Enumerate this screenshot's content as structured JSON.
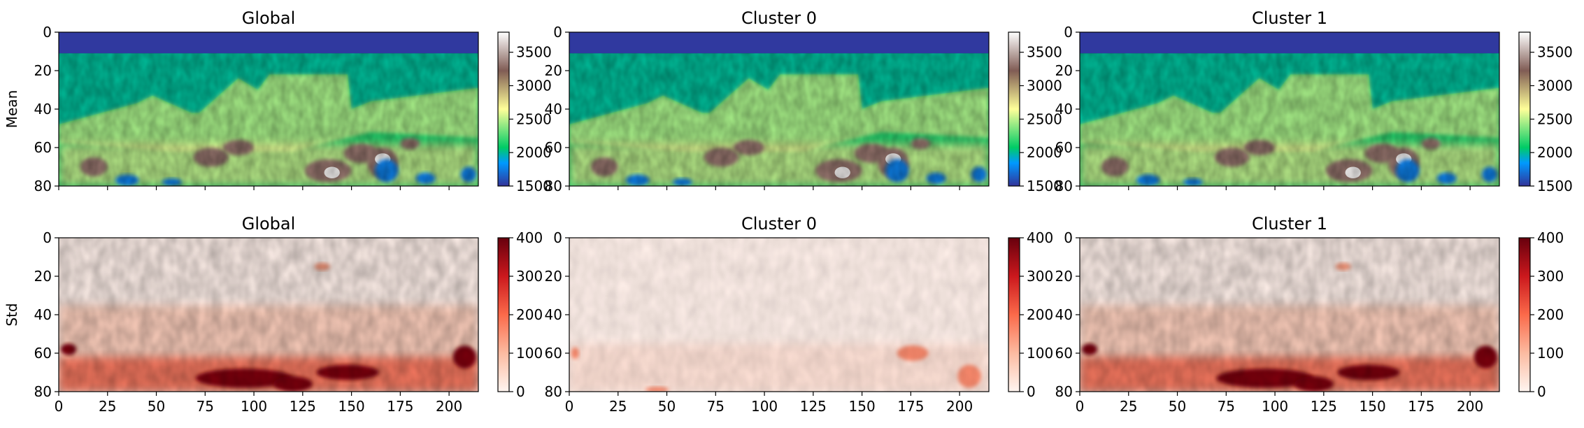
{
  "figure": {
    "row_labels": [
      "Mean",
      "Std"
    ]
  },
  "chart_data": [
    {
      "type": "heatmap",
      "title": "Global",
      "ylabel": "Mean",
      "xlim": [
        0,
        215
      ],
      "ylim": [
        80,
        0
      ],
      "x_ticks": [
        0,
        25,
        50,
        75,
        100,
        125,
        150,
        175,
        200
      ],
      "x_tick_labels_shown": false,
      "y_ticks": [
        0,
        20,
        40,
        60,
        80
      ],
      "colormap": "terrain",
      "colorbar": {
        "min": 1500,
        "max": 3800,
        "ticks": [
          1500,
          2000,
          2500,
          3000,
          3500
        ]
      }
    },
    {
      "type": "heatmap",
      "title": "Cluster 0",
      "xlim": [
        0,
        215
      ],
      "ylim": [
        80,
        0
      ],
      "x_ticks": [
        0,
        25,
        50,
        75,
        100,
        125,
        150,
        175,
        200
      ],
      "x_tick_labels_shown": false,
      "y_ticks": [
        0,
        20,
        40,
        60,
        80
      ],
      "colormap": "terrain",
      "colorbar": {
        "min": 1500,
        "max": 3800,
        "ticks": [
          1500,
          2000,
          2500,
          3000,
          3500
        ]
      }
    },
    {
      "type": "heatmap",
      "title": "Cluster 1",
      "xlim": [
        0,
        215
      ],
      "ylim": [
        80,
        0
      ],
      "x_ticks": [
        0,
        25,
        50,
        75,
        100,
        125,
        150,
        175,
        200
      ],
      "x_tick_labels_shown": false,
      "y_ticks": [
        0,
        20,
        40,
        60,
        80
      ],
      "colormap": "terrain",
      "colorbar": {
        "min": 1500,
        "max": 3800,
        "ticks": [
          1500,
          2000,
          2500,
          3000,
          3500
        ]
      }
    },
    {
      "type": "heatmap",
      "title": "Global",
      "ylabel": "Std",
      "xlim": [
        0,
        215
      ],
      "ylim": [
        80,
        0
      ],
      "x_ticks": [
        0,
        25,
        50,
        75,
        100,
        125,
        150,
        175,
        200
      ],
      "x_tick_labels_shown": true,
      "y_ticks": [
        0,
        20,
        40,
        60,
        80
      ],
      "colormap": "Reds",
      "colorbar": {
        "min": 0,
        "max": 400,
        "ticks": [
          0,
          100,
          200,
          300,
          400
        ]
      }
    },
    {
      "type": "heatmap",
      "title": "Cluster 0",
      "xlim": [
        0,
        215
      ],
      "ylim": [
        80,
        0
      ],
      "x_ticks": [
        0,
        25,
        50,
        75,
        100,
        125,
        150,
        175,
        200
      ],
      "x_tick_labels_shown": true,
      "y_ticks": [
        0,
        20,
        40,
        60,
        80
      ],
      "colormap": "Reds",
      "colorbar": {
        "min": 0,
        "max": 400,
        "ticks": [
          0,
          100,
          200,
          300,
          400
        ]
      }
    },
    {
      "type": "heatmap",
      "title": "Cluster 1",
      "xlim": [
        0,
        215
      ],
      "ylim": [
        80,
        0
      ],
      "x_ticks": [
        0,
        25,
        50,
        75,
        100,
        125,
        150,
        175,
        200
      ],
      "x_tick_labels_shown": true,
      "y_ticks": [
        0,
        20,
        40,
        60,
        80
      ],
      "colormap": "Reds",
      "colorbar": {
        "min": 0,
        "max": 400,
        "ticks": [
          0,
          100,
          200,
          300,
          400
        ]
      }
    }
  ]
}
